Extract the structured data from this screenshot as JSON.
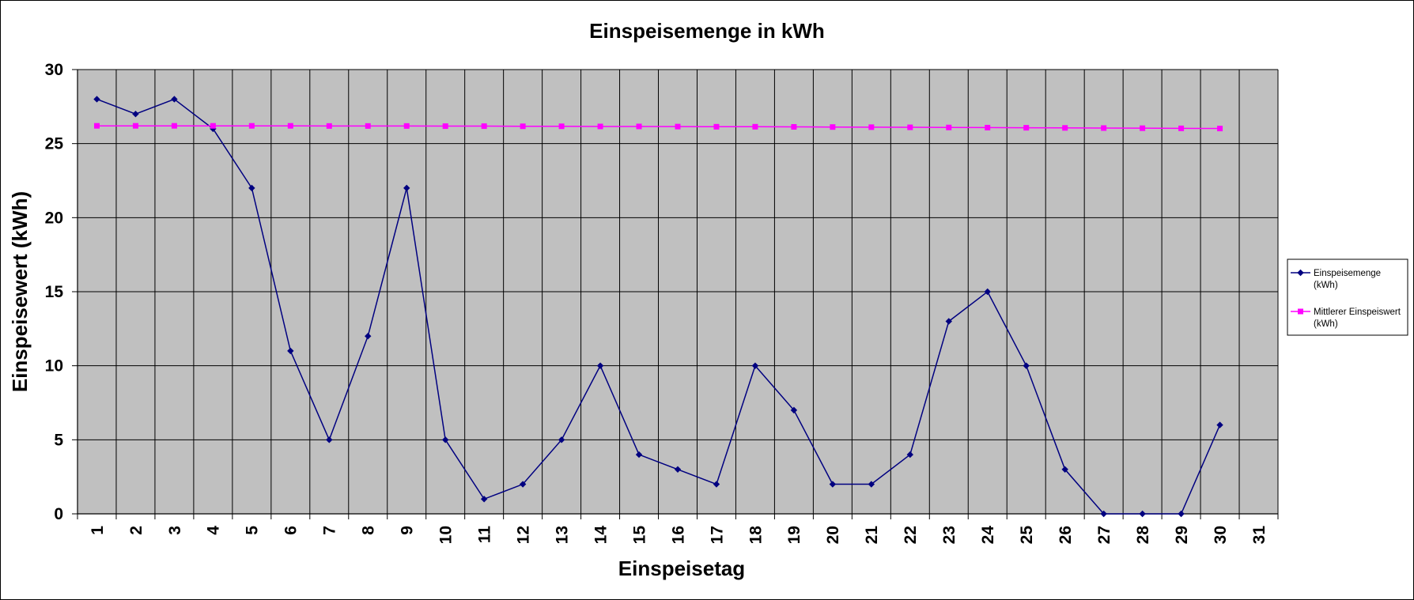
{
  "colors": {
    "plot_background": "#C0C0C0",
    "grid": "#000000",
    "series_1": "#000080",
    "series_2": "#FF00FF"
  },
  "chart_data": {
    "type": "line",
    "title": "Einspeisemenge in kWh",
    "xlabel": "Einspeisetag",
    "ylabel": "Einspeisewert  (kWh)",
    "categories": [
      "1",
      "2",
      "3",
      "4",
      "5",
      "6",
      "7",
      "8",
      "9",
      "10",
      "11",
      "12",
      "13",
      "14",
      "15",
      "16",
      "17",
      "18",
      "19",
      "20",
      "21",
      "22",
      "23",
      "24",
      "25",
      "26",
      "27",
      "28",
      "29",
      "30",
      "31"
    ],
    "ylim": [
      0,
      30
    ],
    "yticks": [
      "0",
      "5",
      "10",
      "15",
      "20",
      "25",
      "30"
    ],
    "grid": true,
    "legend_position": "right",
    "series": [
      {
        "name": "Einspeisemenge (kWh)",
        "legend_lines": [
          "Einspeisemenge",
          "(kWh)"
        ],
        "marker": "diamond",
        "color": "#000080",
        "values": [
          28,
          27,
          28,
          26,
          22,
          11,
          5,
          12,
          22,
          5,
          1,
          2,
          5,
          10,
          4,
          3,
          2,
          10,
          7,
          2,
          2,
          4,
          13,
          15,
          10,
          3,
          0,
          0,
          0,
          6,
          null
        ]
      },
      {
        "name": "Mittlerer Einspeiswert (kWh)",
        "legend_lines": [
          "Mittlerer Einspeiswert",
          "(kWh)"
        ],
        "marker": "square",
        "color": "#FF00FF",
        "values": [
          26.2,
          26.2,
          26.2,
          26.2,
          26.2,
          26.2,
          26.19,
          26.19,
          26.19,
          26.18,
          26.18,
          26.17,
          26.17,
          26.16,
          26.16,
          26.15,
          26.14,
          26.14,
          26.13,
          26.12,
          26.11,
          26.1,
          26.09,
          26.08,
          26.07,
          26.06,
          26.05,
          26.04,
          26.03,
          26.02,
          null
        ]
      }
    ]
  }
}
